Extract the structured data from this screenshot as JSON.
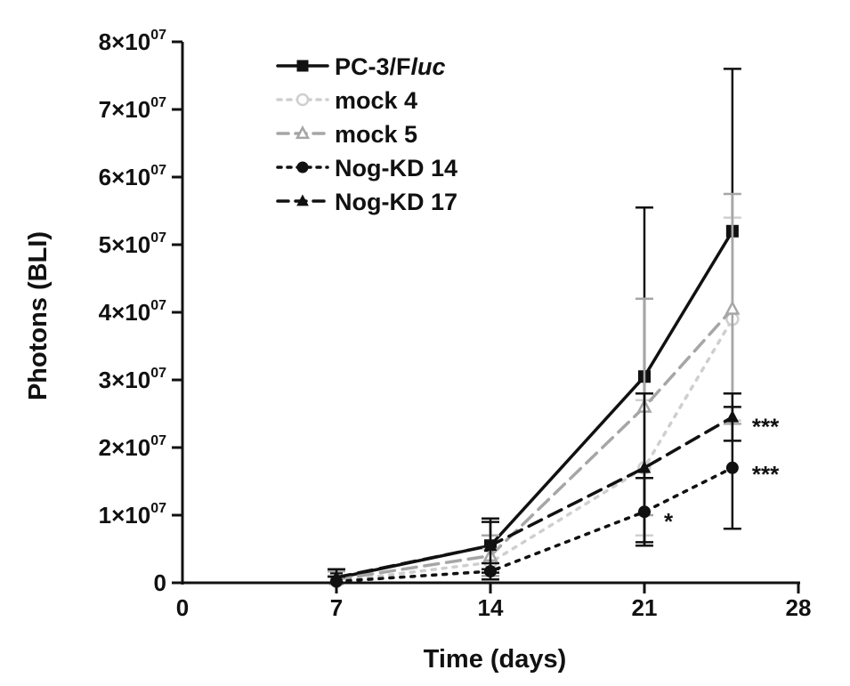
{
  "chart_data": {
    "type": "line",
    "xlabel": "Time (days)",
    "ylabel": "Photons (BLI)",
    "xlim": [
      0,
      28
    ],
    "ylim": [
      0,
      80000000
    ],
    "x_ticks": [
      "0",
      "7",
      "14",
      "21",
      "28"
    ],
    "y_ticks": [
      {
        "mantissa": "0",
        "exp": ""
      },
      {
        "mantissa": "1×10",
        "exp": "07"
      },
      {
        "mantissa": "2×10",
        "exp": "07"
      },
      {
        "mantissa": "3×10",
        "exp": "07"
      },
      {
        "mantissa": "4×10",
        "exp": "07"
      },
      {
        "mantissa": "5×10",
        "exp": "07"
      },
      {
        "mantissa": "6×10",
        "exp": "07"
      },
      {
        "mantissa": "7×10",
        "exp": "07"
      },
      {
        "mantissa": "8×10",
        "exp": "07"
      }
    ],
    "legend_position": "top-left",
    "grid": false,
    "series": [
      {
        "name": "PC-3/F",
        "name_italic": "luc",
        "color": "#111111",
        "dash": "solid",
        "marker": "square",
        "x": [
          7,
          14,
          21,
          25
        ],
        "y": [
          700000,
          5500000,
          30500000,
          52000000
        ],
        "err": [
          1200000,
          3500000,
          25000000,
          24000000
        ],
        "sig": ""
      },
      {
        "name": "mock 4",
        "name_italic": "",
        "color": "#cfcfcf",
        "dash": "dot",
        "marker": "circle-open",
        "x": [
          7,
          14,
          21,
          25
        ],
        "y": [
          200000,
          3000000,
          17000000,
          39000000
        ],
        "err": [
          900000,
          2000000,
          10000000,
          15000000
        ],
        "sig": ""
      },
      {
        "name": "mock 5",
        "name_italic": "",
        "color": "#a6a6a6",
        "dash": "dash",
        "marker": "triangle-open",
        "x": [
          7,
          14,
          21,
          25
        ],
        "y": [
          500000,
          4000000,
          26000000,
          40500000
        ],
        "err": [
          1200000,
          3000000,
          16000000,
          17000000
        ],
        "sig": ""
      },
      {
        "name": "Nog-KD 14",
        "name_italic": "",
        "color": "#111111",
        "dash": "dot",
        "marker": "circle",
        "x": [
          7,
          14,
          21,
          25
        ],
        "y": [
          200000,
          1700000,
          10500000,
          17000000
        ],
        "err": [
          700000,
          1200000,
          5000000,
          9000000
        ],
        "sig": "*"
      },
      {
        "name": "Nog-KD 17",
        "name_italic": "",
        "color": "#111111",
        "dash": "dash",
        "marker": "triangle",
        "x": [
          7,
          14,
          21,
          25
        ],
        "y": [
          800000,
          5500000,
          17000000,
          24500000
        ],
        "err": [
          1200000,
          4000000,
          11000000,
          3500000
        ],
        "sig": "***"
      }
    ],
    "annotations": [
      {
        "x": 25,
        "y": 24000000,
        "text": "***"
      },
      {
        "x": 25,
        "y": 17000000,
        "text": "***"
      },
      {
        "x": 21,
        "y": 10000000,
        "text": "*"
      }
    ]
  }
}
